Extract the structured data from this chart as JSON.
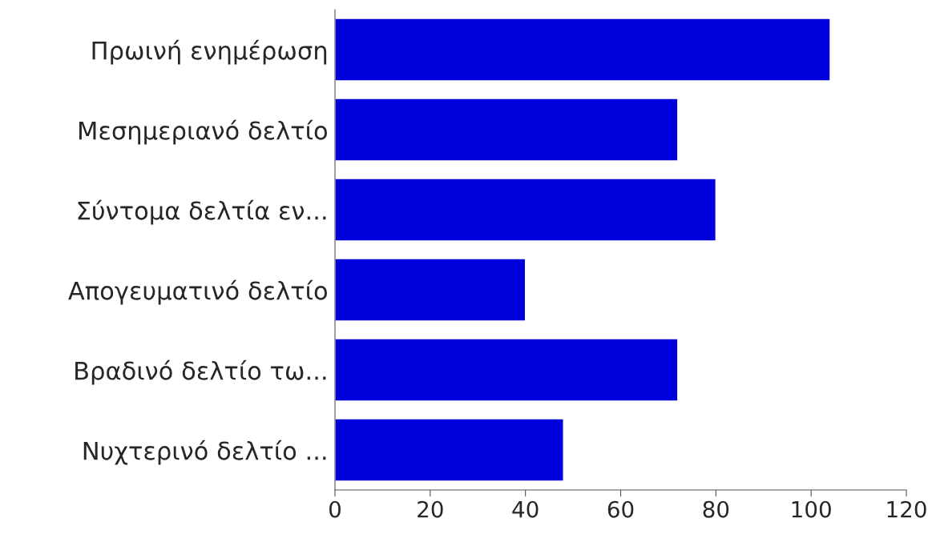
{
  "chart_data": {
    "type": "bar",
    "orientation": "horizontal",
    "categories": [
      "Πρωινή ενημέρωση",
      "Μεσημεριανό δελτίο",
      "Σύντομα δελτία εν...",
      "Απογευματινό δελτίο",
      "Βραδινό δελτίο τω...",
      "Νυχτερινό δελτίο ..."
    ],
    "values": [
      104,
      72,
      80,
      40,
      72,
      48
    ],
    "color": "#0000dd",
    "xlim": [
      0,
      120
    ],
    "xticks": [
      0,
      20,
      40,
      60,
      80,
      100,
      120
    ],
    "grid": false
  }
}
